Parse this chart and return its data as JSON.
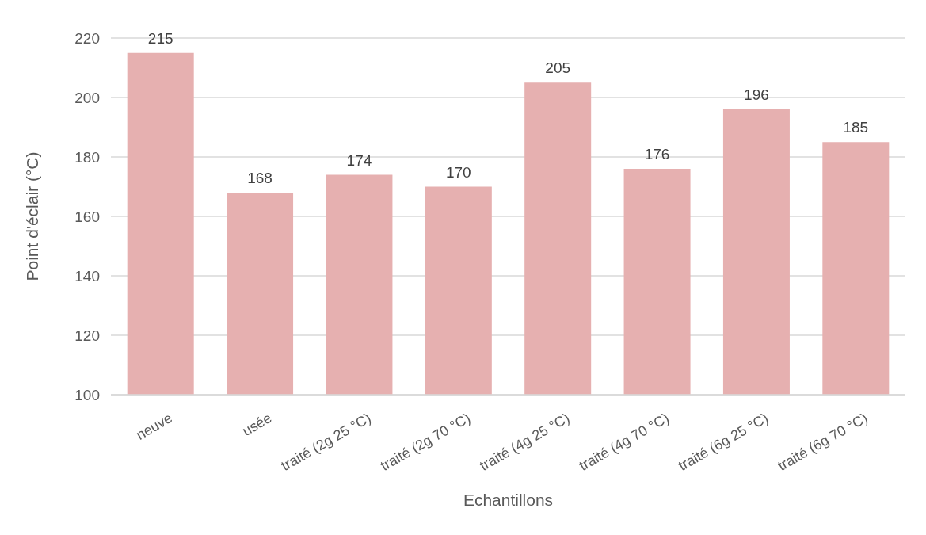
{
  "chart_data": {
    "type": "bar",
    "xlabel": "Echantillons",
    "ylabel": "Point d'éclair (°C)",
    "categories": [
      "neuve",
      "usée",
      "traité (2g 25 °C)",
      "traité (2g 70 °C)",
      "traité (4g 25 °C)",
      "traité (4g 70 °C)",
      "traité (6g 25 °C)",
      "traité (6g 70 °C)"
    ],
    "values": [
      215,
      168,
      174,
      170,
      205,
      176,
      196,
      185
    ],
    "color": "#e6b0b0",
    "ylim": [
      100,
      220
    ],
    "yticks": [
      100,
      120,
      140,
      160,
      180,
      200,
      220
    ],
    "grid": "y",
    "data_labels": true
  }
}
